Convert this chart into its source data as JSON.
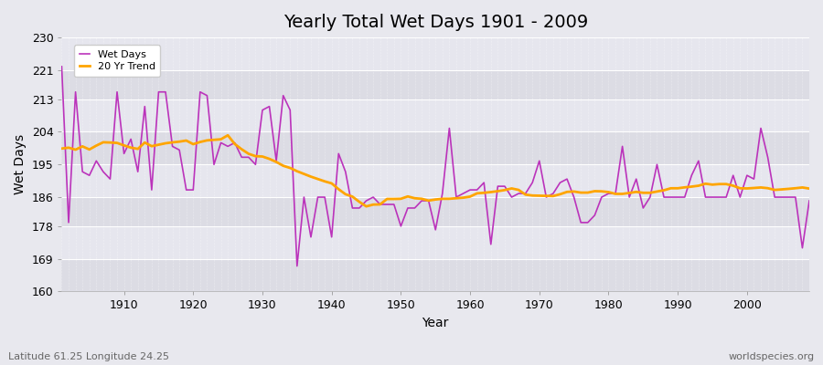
{
  "title": "Yearly Total Wet Days 1901 - 2009",
  "xlabel": "Year",
  "ylabel": "Wet Days",
  "subtitle": "Latitude 61.25 Longitude 24.25",
  "watermark": "worldspecies.org",
  "legend_label_wet": "Wet Days",
  "legend_label_trend": "20 Yr Trend",
  "ylim": [
    160,
    230
  ],
  "yticks": [
    160,
    169,
    178,
    186,
    195,
    204,
    213,
    221,
    230
  ],
  "xlim": [
    1901,
    2009
  ],
  "line_color": "#BB33BB",
  "trend_color": "#FFA500",
  "bg_color": "#E8E8EE",
  "band_color_light": "#DCDCE6",
  "band_color_dark": "#E8E8F0",
  "grid_color": "#FFFFFF",
  "title_fontsize": 14,
  "label_fontsize": 10,
  "footnote_fontsize": 8,
  "trend_window": 20,
  "years": [
    1901,
    1902,
    1903,
    1904,
    1905,
    1906,
    1907,
    1908,
    1909,
    1910,
    1911,
    1912,
    1913,
    1914,
    1915,
    1916,
    1917,
    1918,
    1919,
    1920,
    1921,
    1922,
    1923,
    1924,
    1925,
    1926,
    1927,
    1928,
    1929,
    1930,
    1931,
    1932,
    1933,
    1934,
    1935,
    1936,
    1937,
    1938,
    1939,
    1940,
    1941,
    1942,
    1943,
    1944,
    1945,
    1946,
    1947,
    1948,
    1949,
    1950,
    1951,
    1952,
    1953,
    1954,
    1955,
    1956,
    1957,
    1958,
    1959,
    1960,
    1961,
    1962,
    1963,
    1964,
    1965,
    1966,
    1967,
    1968,
    1969,
    1970,
    1971,
    1972,
    1973,
    1974,
    1975,
    1976,
    1977,
    1978,
    1979,
    1980,
    1981,
    1982,
    1983,
    1984,
    1985,
    1986,
    1987,
    1988,
    1989,
    1990,
    1991,
    1992,
    1993,
    1994,
    1995,
    1996,
    1997,
    1998,
    1999,
    2000,
    2001,
    2002,
    2003,
    2004,
    2005,
    2006,
    2007,
    2008,
    2009
  ],
  "wet_days": [
    222,
    179,
    215,
    193,
    192,
    196,
    193,
    191,
    215,
    198,
    202,
    193,
    211,
    188,
    215,
    215,
    200,
    199,
    188,
    188,
    215,
    214,
    195,
    201,
    200,
    201,
    197,
    197,
    195,
    210,
    211,
    196,
    214,
    210,
    167,
    186,
    175,
    186,
    186,
    175,
    198,
    193,
    183,
    183,
    185,
    186,
    184,
    184,
    184,
    178,
    183,
    183,
    185,
    185,
    177,
    187,
    205,
    186,
    187,
    188,
    188,
    190,
    173,
    189,
    189,
    186,
    187,
    187,
    190,
    196,
    186,
    187,
    190,
    191,
    186,
    179,
    179,
    181,
    186,
    187,
    187,
    200,
    186,
    191,
    183,
    186,
    195,
    186,
    186,
    186,
    186,
    192,
    196,
    186,
    186,
    186,
    186,
    192,
    186,
    192,
    191,
    205,
    197,
    186,
    186,
    186,
    186,
    172,
    185
  ]
}
